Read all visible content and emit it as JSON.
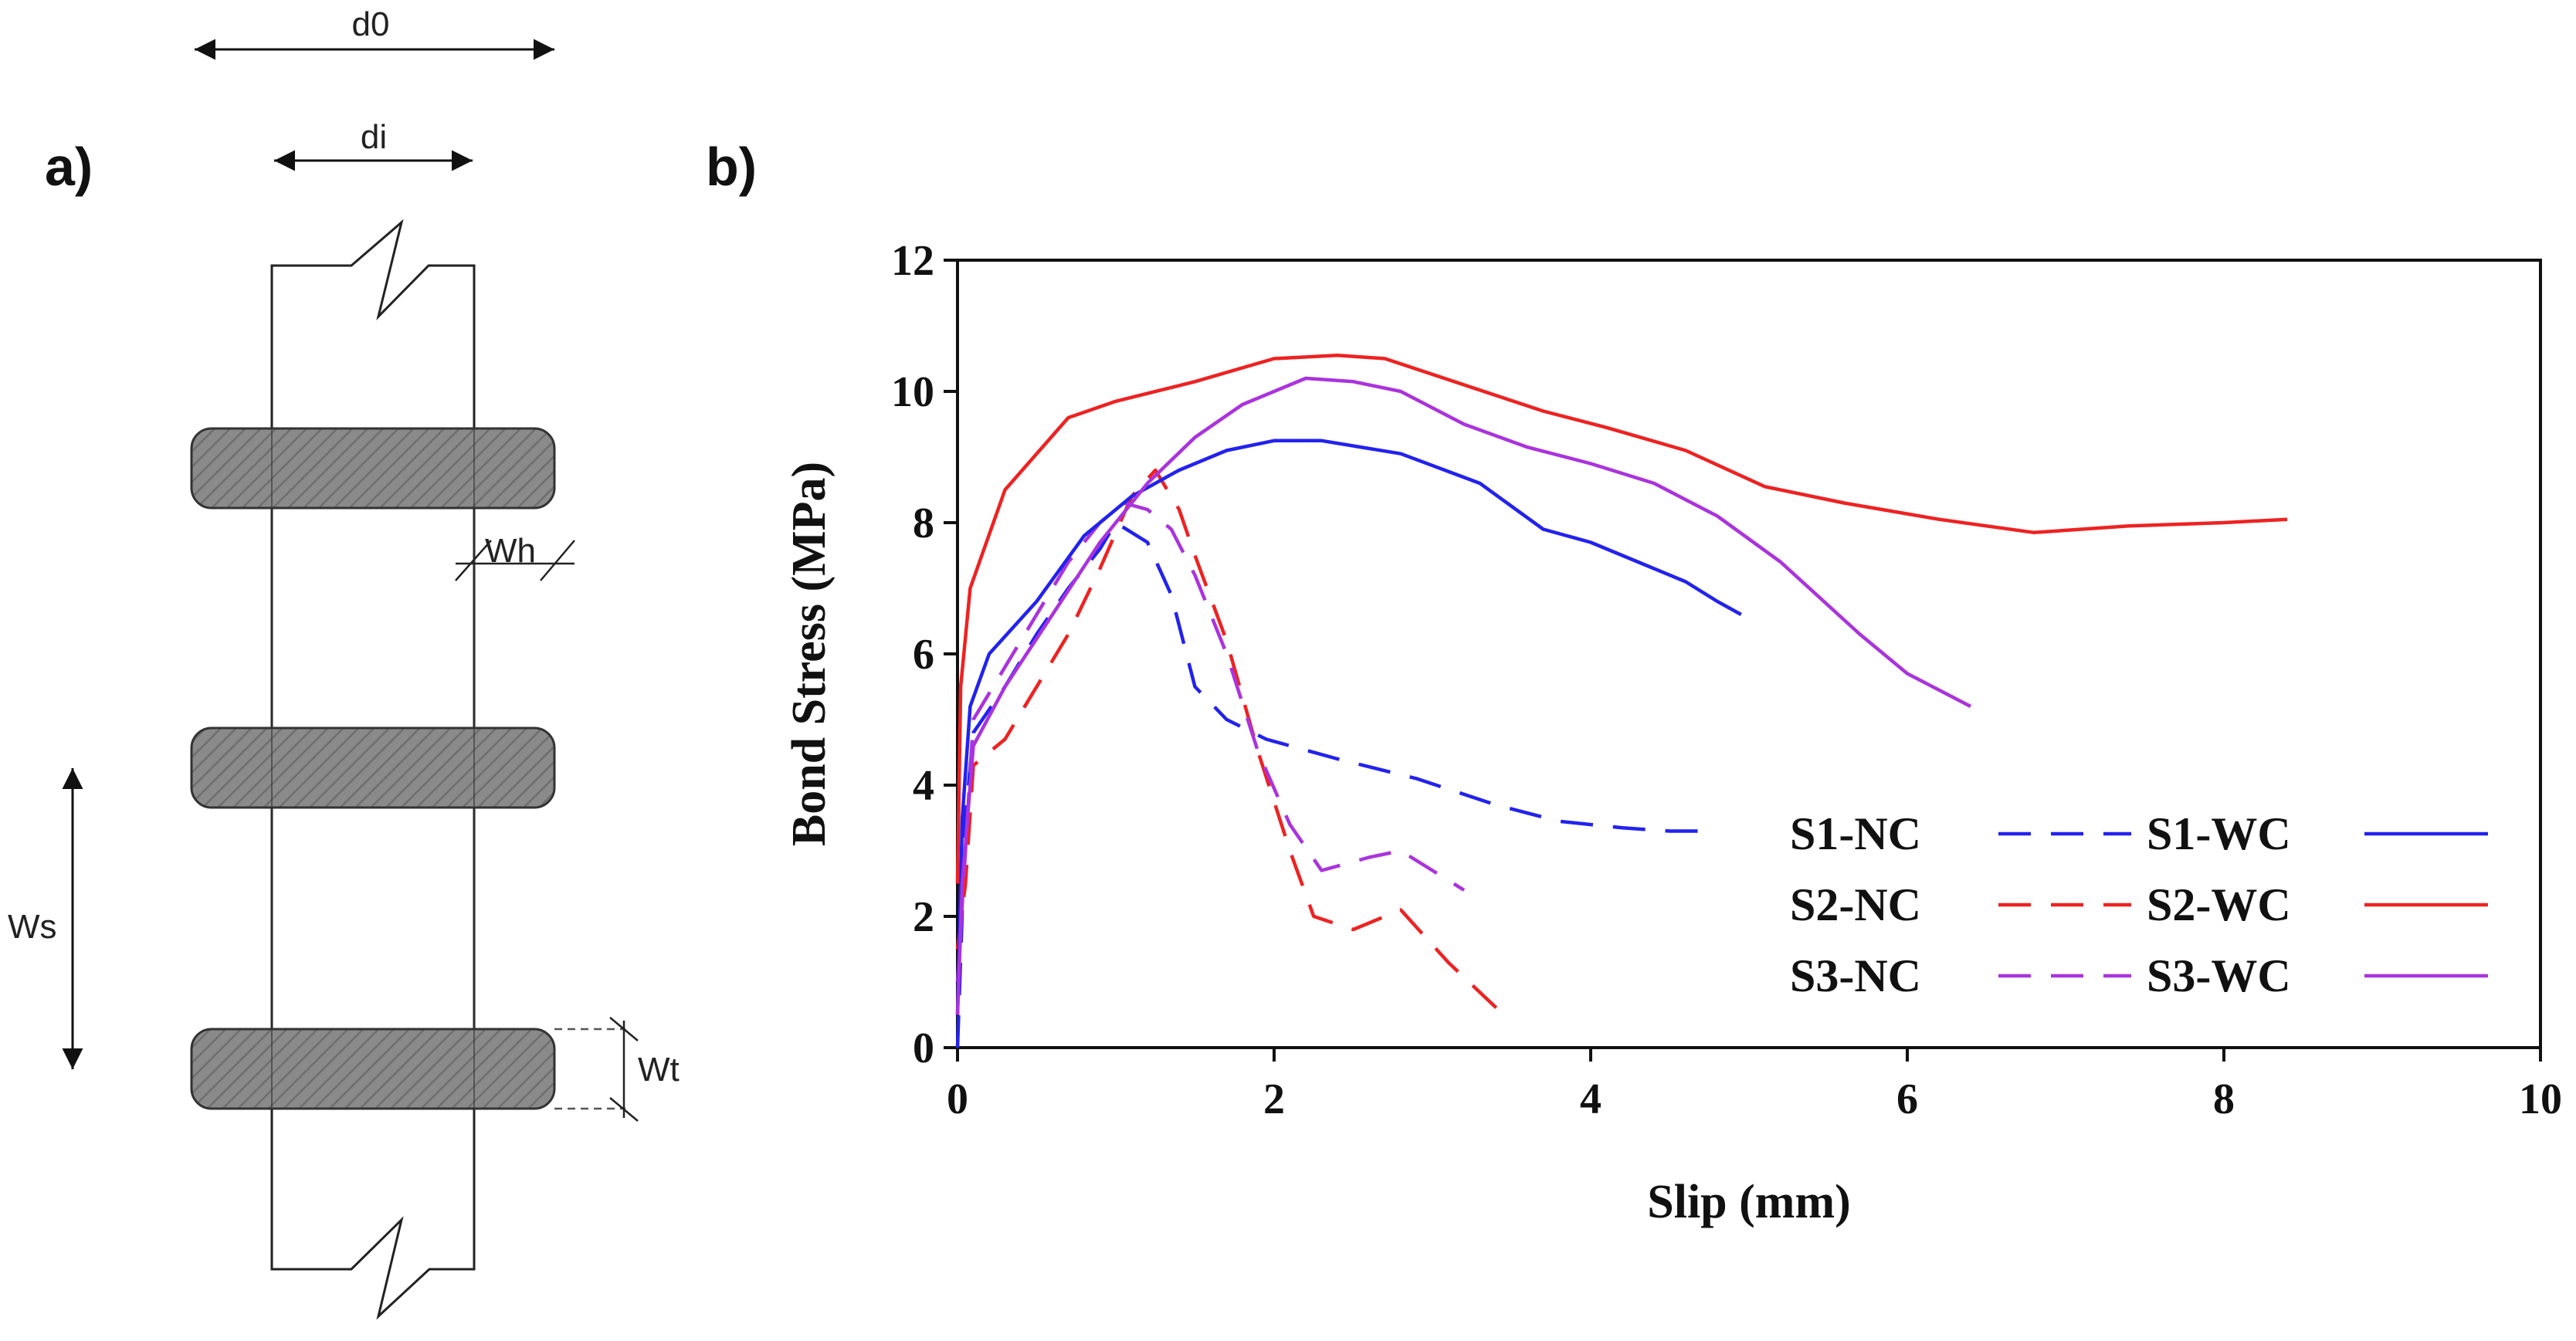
{
  "panel_a": {
    "label": "a)",
    "dims": {
      "d0": "d0",
      "di": "di",
      "wh": "Wh",
      "ws": "Ws",
      "wt": "Wt"
    }
  },
  "panel_b": {
    "label": "b)"
  },
  "chart_data": {
    "type": "line",
    "title": "",
    "xlabel": "Slip (mm)",
    "ylabel": "Bond Stress (MPa)",
    "xlim": [
      0,
      10
    ],
    "ylim": [
      0,
      12
    ],
    "xticks": [
      0,
      2,
      4,
      6,
      8,
      10
    ],
    "yticks": [
      0,
      2,
      4,
      6,
      8,
      10,
      12
    ],
    "grid": false,
    "legend_position": "bottom-right",
    "series": [
      {
        "name": "S1-NC",
        "color": "#2222ee",
        "style": "dashed",
        "x": [
          0,
          0.05,
          0.1,
          0.3,
          0.5,
          0.7,
          0.9,
          1.0,
          1.2,
          1.35,
          1.5,
          1.7,
          1.95,
          2.4,
          2.9,
          3.4,
          3.8,
          4.2,
          4.5,
          4.8
        ],
        "y": [
          0,
          3.5,
          4.8,
          5.5,
          6.3,
          7.0,
          7.6,
          8.0,
          7.7,
          6.9,
          5.5,
          5.0,
          4.7,
          4.4,
          4.1,
          3.7,
          3.45,
          3.35,
          3.3,
          3.3
        ]
      },
      {
        "name": "S2-NC",
        "color": "#ee2222",
        "style": "dashed",
        "x": [
          0,
          0.05,
          0.1,
          0.3,
          0.5,
          0.7,
          0.9,
          1.1,
          1.25,
          1.3,
          1.4,
          1.5,
          1.7,
          1.9,
          2.1,
          2.25,
          2.5,
          2.8,
          3.1,
          3.45
        ],
        "y": [
          1.5,
          2.5,
          4.3,
          4.7,
          5.5,
          6.3,
          7.3,
          8.4,
          8.8,
          8.6,
          8.2,
          7.5,
          6.2,
          4.5,
          3.0,
          2.0,
          1.8,
          2.1,
          1.3,
          0.5
        ]
      },
      {
        "name": "S3-NC",
        "color": "#aa33dd",
        "style": "dashed",
        "x": [
          0,
          0.05,
          0.1,
          0.3,
          0.5,
          0.7,
          0.9,
          1.05,
          1.2,
          1.35,
          1.5,
          1.7,
          1.9,
          2.1,
          2.3,
          2.45,
          2.6,
          2.8,
          3.0,
          3.2
        ],
        "y": [
          1.0,
          3.0,
          5.0,
          5.8,
          6.6,
          7.4,
          8.0,
          8.3,
          8.2,
          7.9,
          7.2,
          6.0,
          4.5,
          3.4,
          2.7,
          2.8,
          2.9,
          3.0,
          2.7,
          2.4
        ]
      },
      {
        "name": "S1-WC",
        "color": "#2222ee",
        "style": "solid",
        "x": [
          0,
          0.03,
          0.08,
          0.2,
          0.5,
          0.8,
          1.1,
          1.4,
          1.7,
          2.0,
          2.3,
          2.8,
          3.3,
          3.7,
          4.0,
          4.3,
          4.6,
          4.8,
          4.95
        ],
        "y": [
          0.5,
          3.5,
          5.2,
          6.0,
          6.8,
          7.8,
          8.4,
          8.8,
          9.1,
          9.25,
          9.25,
          9.05,
          8.6,
          7.9,
          7.7,
          7.4,
          7.1,
          6.8,
          6.6
        ]
      },
      {
        "name": "S2-WC",
        "color": "#ee2222",
        "style": "solid",
        "x": [
          0,
          0.02,
          0.08,
          0.3,
          0.7,
          1.0,
          1.5,
          2.0,
          2.4,
          2.7,
          3.2,
          3.7,
          4.1,
          4.6,
          5.1,
          5.6,
          6.2,
          6.8,
          7.4,
          8.0,
          8.4
        ],
        "y": [
          2.5,
          5.5,
          7.0,
          8.5,
          9.6,
          9.85,
          10.15,
          10.5,
          10.55,
          10.5,
          10.1,
          9.7,
          9.45,
          9.1,
          8.55,
          8.3,
          8.05,
          7.85,
          7.95,
          8.0,
          8.05
        ]
      },
      {
        "name": "S3-WC",
        "color": "#aa33dd",
        "style": "solid",
        "x": [
          0,
          0.03,
          0.1,
          0.3,
          0.6,
          0.9,
          1.2,
          1.5,
          1.8,
          2.2,
          2.5,
          2.8,
          3.2,
          3.6,
          4.0,
          4.4,
          4.8,
          5.2,
          5.7,
          6.0,
          6.4
        ],
        "y": [
          0.5,
          2.5,
          4.6,
          5.5,
          6.6,
          7.7,
          8.6,
          9.3,
          9.8,
          10.2,
          10.15,
          10.0,
          9.5,
          9.15,
          8.9,
          8.6,
          8.1,
          7.4,
          6.3,
          5.7,
          5.2
        ]
      }
    ]
  }
}
